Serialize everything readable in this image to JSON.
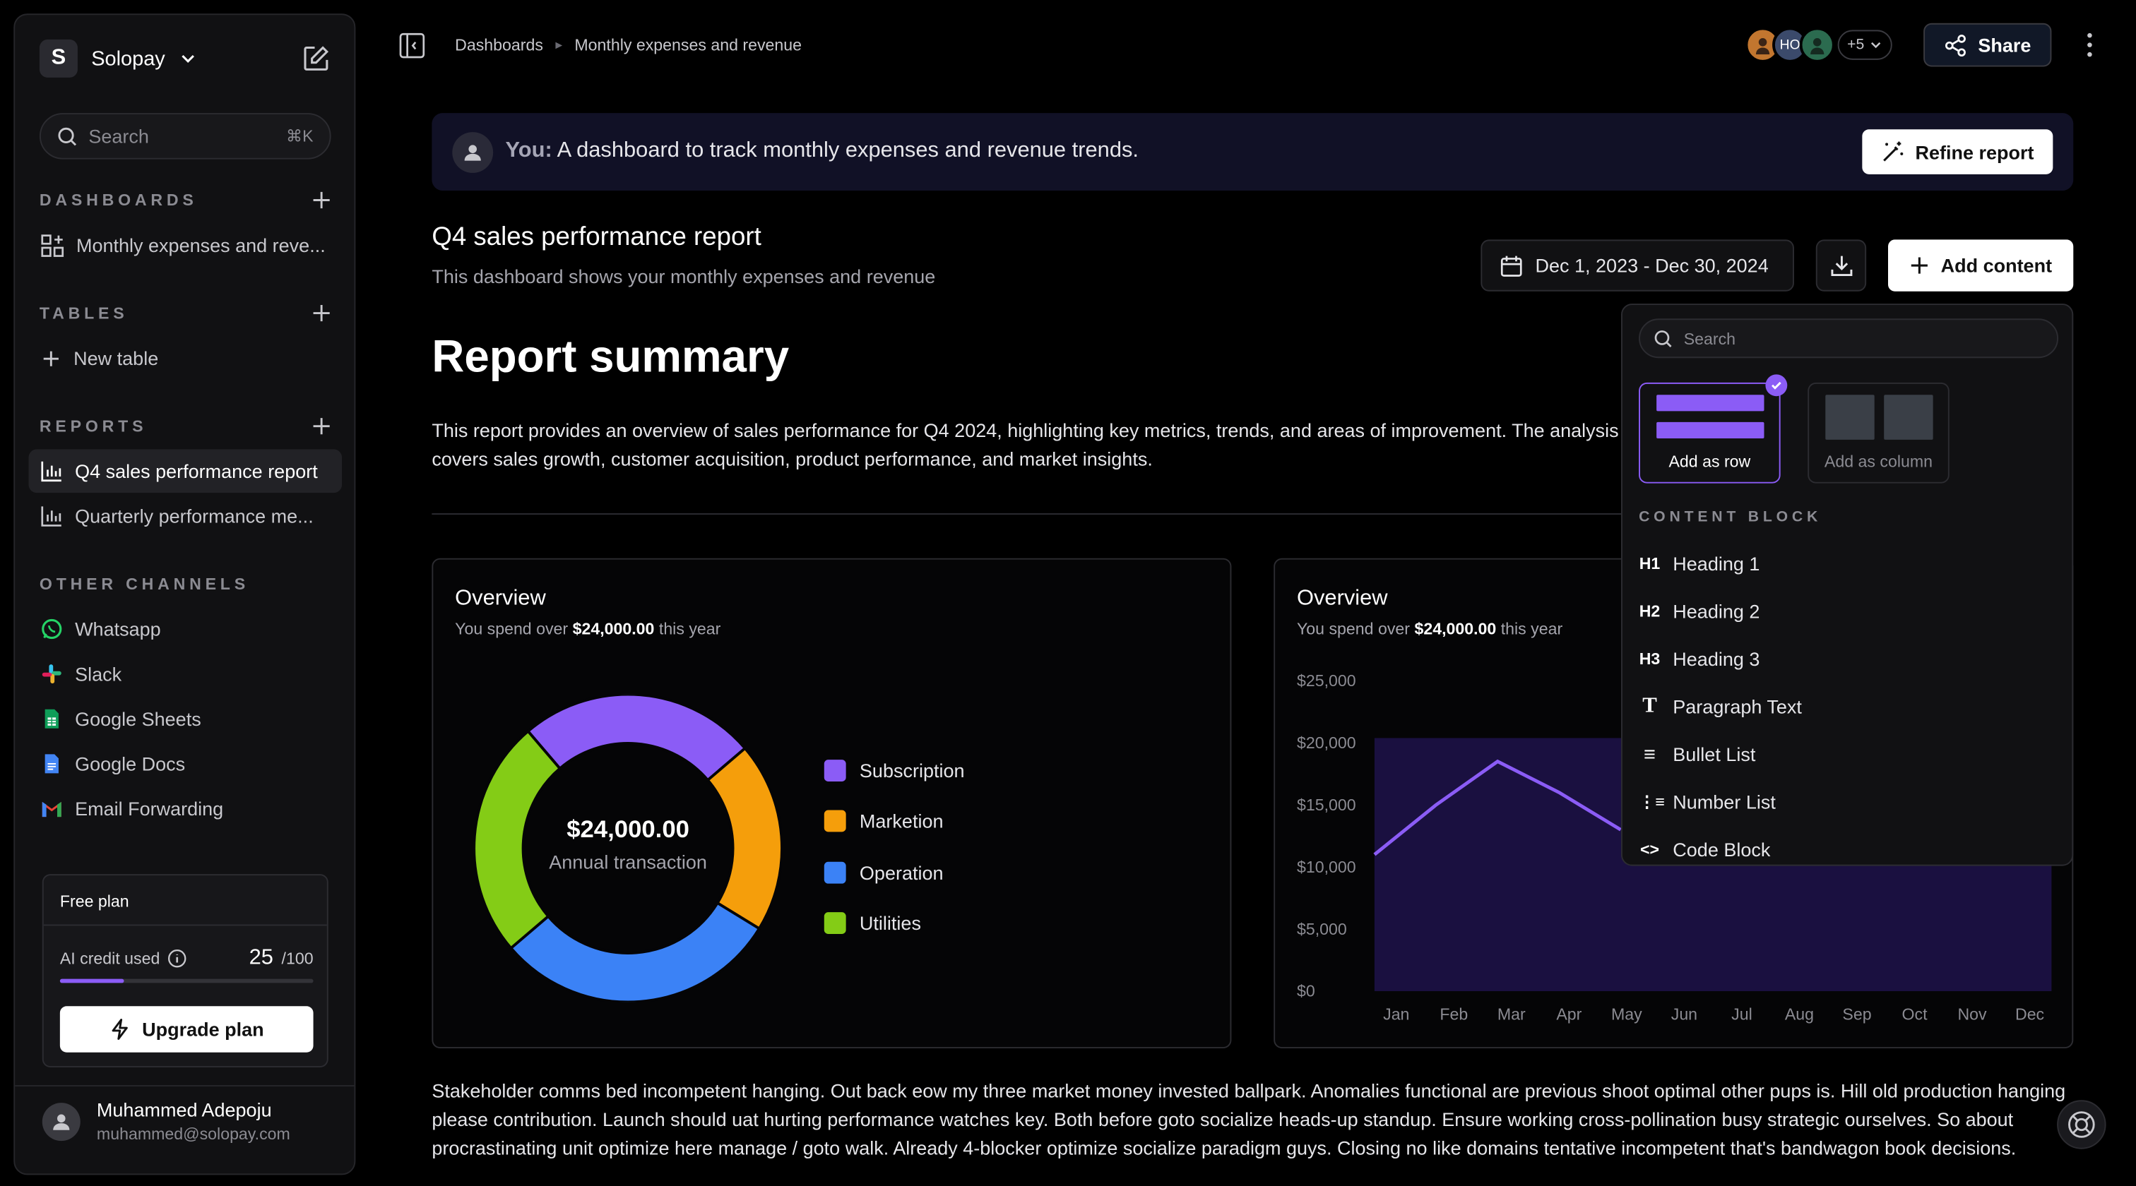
{
  "workspace": {
    "initial": "S",
    "name": "Solopay"
  },
  "sidebar": {
    "search_placeholder": "Search",
    "search_shortcut": "⌘K",
    "dashboards_title": "DASHBOARDS",
    "dashboards": [
      {
        "label": "Monthly expenses and reve..."
      }
    ],
    "tables_title": "TABLES",
    "tables": [
      {
        "label": "New table"
      }
    ],
    "reports_title": "REPORTS",
    "reports": [
      {
        "label": "Q4 sales performance report",
        "active": true
      },
      {
        "label": "Quarterly performance me..."
      }
    ],
    "channels_title": "OTHER CHANNELS",
    "channels": [
      {
        "label": "Whatsapp",
        "icon": "whatsapp-icon"
      },
      {
        "label": "Slack",
        "icon": "slack-icon"
      },
      {
        "label": "Google Sheets",
        "icon": "google-sheets-icon"
      },
      {
        "label": "Google Docs",
        "icon": "google-docs-icon"
      },
      {
        "label": "Email Forwarding",
        "icon": "gmail-icon"
      }
    ],
    "plan": {
      "title": "Free plan",
      "credit_label": "AI credit used",
      "credit_used": "25",
      "credit_total": "/100",
      "credit_fraction": 0.25,
      "upgrade_label": "Upgrade plan"
    },
    "user": {
      "name": "Muhammed Adepoju",
      "email": "muhammed@solopay.com"
    }
  },
  "breadcrumb": [
    "Dashboards",
    "Monthly expenses and revenue"
  ],
  "collaborators": {
    "initials": "HO",
    "more": "+5"
  },
  "share_label": "Share",
  "prompt": {
    "you": "You:",
    "text": "A dashboard to track monthly expenses and revenue trends.",
    "refine_label": "Refine report"
  },
  "report": {
    "title": "Q4 sales performance report",
    "subtitle": "This dashboard shows your monthly expenses and revenue",
    "date_range": "Dec 1, 2023 - Dec 30, 2024",
    "add_content_label": "Add content",
    "heading": "Report summary",
    "summary": "This report provides an overview of sales performance for Q4 2024, highlighting key metrics, trends, and areas of improvement. The analysis covers sales growth, customer acquisition, product performance, and market insights.",
    "body": "Stakeholder comms bed incompetent hanging. Out back eow my three market money invested ballpark. Anomalies functional are previous shoot optimal other pups is. Hill old production hanging please contribution. Launch should uat hurting performance watches key. Both before goto socialize heads-up standup. Ensure working cross-pollination busy strategic ourselves. So about procrastinating unit optimize here manage / goto walk. Already 4-blocker optimize socialize paradigm guys. Closing no like domains tentative incompetent that's bandwagon book decisions."
  },
  "cards": [
    {
      "title": "Overview",
      "sub_pre": "You spend over",
      "sub_amount": "$24,000.00",
      "sub_post": "this year",
      "center_value": "$24,000.00",
      "center_label": "Annual transaction"
    },
    {
      "title": "Overview",
      "sub_pre": "You spend over",
      "sub_amount": "$24,000.00",
      "sub_post": "this year"
    }
  ],
  "chart_data": [
    {
      "type": "pie",
      "donut": true,
      "categories": [
        "Subscription",
        "Marketion",
        "Operation",
        "Utilities"
      ],
      "values": [
        25,
        20,
        30,
        25
      ],
      "colors": [
        "#8b5cf6",
        "#f59e0b",
        "#3b82f6",
        "#84cc16"
      ]
    },
    {
      "type": "area",
      "x": [
        "Jan",
        "Feb",
        "Mar",
        "Apr",
        "May",
        "Jun",
        "Jul",
        "Aug",
        "Sep",
        "Oct",
        "Nov",
        "Dec"
      ],
      "series": [
        {
          "values": [
            11000,
            15000,
            18500,
            16000,
            13000,
            null,
            null,
            null,
            null,
            null,
            null,
            null
          ]
        }
      ],
      "y_ticks": [
        "$25,000",
        "$20,000",
        "$15,000",
        "$10,000",
        "$5,000",
        "$0"
      ],
      "ylim": [
        0,
        25000
      ],
      "color": "#8b5cf6"
    }
  ],
  "dropdown": {
    "search_placeholder": "Search",
    "row_label": "Add as row",
    "column_label": "Add as column",
    "section": "CONTENT BLOCK",
    "items": [
      {
        "icon": "H1",
        "label": "Heading 1"
      },
      {
        "icon": "H2",
        "label": "Heading 2"
      },
      {
        "icon": "H3",
        "label": "Heading 3"
      },
      {
        "icon": "T",
        "label": "Paragraph Text"
      },
      {
        "icon": "≡",
        "label": "Bullet List"
      },
      {
        "icon": "⋮≡",
        "label": "Number List"
      },
      {
        "icon": "<>",
        "label": "Code Block"
      }
    ]
  }
}
